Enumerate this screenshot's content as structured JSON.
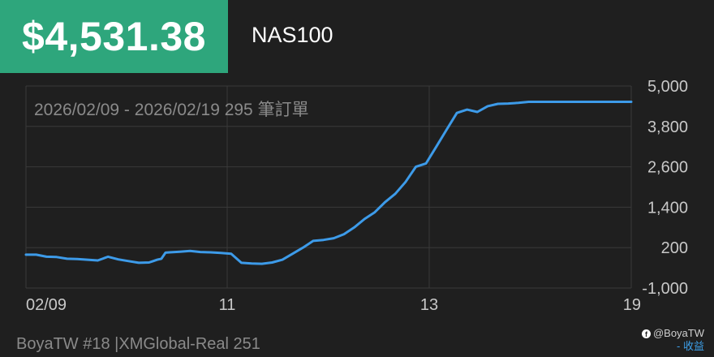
{
  "header": {
    "price": "$4,531.38",
    "symbol": "NAS100"
  },
  "chart_data": {
    "type": "line",
    "annotation": "2026/02/09 - 2026/02/19 295 筆訂單",
    "x_ticks": [
      "02/09",
      "11",
      "13",
      "19"
    ],
    "y_ticks": [
      "5,000",
      "3,800",
      "2,600",
      "1,400",
      "200",
      "-1,000"
    ],
    "ylim": [
      -1000,
      5000
    ],
    "grid": true,
    "line_color": "#3d9be9",
    "series": [
      {
        "x": [
          0,
          5,
          10,
          15,
          20,
          25,
          30,
          35,
          40,
          45,
          50,
          55,
          60,
          62,
          64,
          66,
          68,
          70,
          75,
          80,
          85,
          90,
          95,
          100,
          105,
          110,
          115,
          120,
          125,
          130,
          135,
          140,
          145,
          150,
          155,
          160,
          165,
          170,
          175,
          180,
          185,
          190,
          195,
          200,
          205,
          210,
          215,
          220,
          225,
          230,
          235,
          240,
          245,
          250,
          255,
          260,
          265,
          270,
          275,
          280,
          285,
          290,
          295
        ],
        "values": [
          -10,
          -10,
          -70,
          -80,
          -130,
          -140,
          -160,
          -180,
          -70,
          -150,
          -200,
          -250,
          -240,
          -200,
          -160,
          -130,
          50,
          60,
          80,
          100,
          70,
          60,
          40,
          20,
          -250,
          -270,
          -280,
          -240,
          -160,
          20,
          200,
          400,
          430,
          480,
          600,
          800,
          1050,
          1250,
          1550,
          1800,
          2150,
          2600,
          2700,
          3200,
          3700,
          4200,
          4300,
          4230,
          4400,
          4470,
          4480,
          4500,
          4530,
          4531,
          4531,
          4531,
          4531,
          4531,
          4531,
          4531,
          4531,
          4531,
          4531
        ]
      }
    ]
  },
  "footer": {
    "left": "BoyaTW #18 |XMGlobal-Real 251",
    "handle": "@BoyaTW",
    "legend": "- 收益"
  }
}
